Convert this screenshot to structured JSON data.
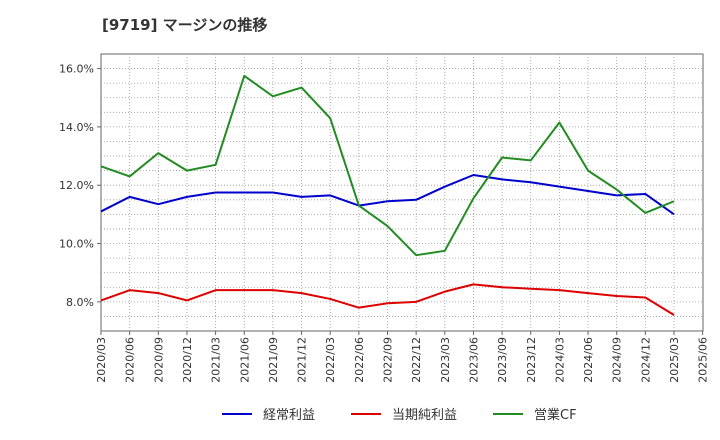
{
  "chart_data": {
    "type": "line",
    "title": "[9719]  マージンの推移",
    "x": [
      "2020/03",
      "2020/06",
      "2020/09",
      "2020/12",
      "2021/03",
      "2021/06",
      "2021/09",
      "2021/12",
      "2022/03",
      "2022/06",
      "2022/09",
      "2022/12",
      "2023/03",
      "2023/06",
      "2023/09",
      "2023/12",
      "2024/03",
      "2024/06",
      "2024/09",
      "2024/12",
      "2025/03"
    ],
    "x_ticks": [
      "2020/03",
      "2020/06",
      "2020/09",
      "2020/12",
      "2021/03",
      "2021/06",
      "2021/09",
      "2021/12",
      "2022/03",
      "2022/06",
      "2022/09",
      "2022/12",
      "2023/03",
      "2023/06",
      "2023/09",
      "2023/12",
      "2024/03",
      "2024/06",
      "2024/09",
      "2024/12",
      "2025/03",
      "2025/06"
    ],
    "y_ticks": [
      "8.0%",
      "10.0%",
      "12.0%",
      "14.0%",
      "16.0%"
    ],
    "y_tick_values": [
      8,
      10,
      12,
      14,
      16
    ],
    "ylim": [
      7.0,
      16.5
    ],
    "grid": true,
    "legend_position": "bottom",
    "series": [
      {
        "name": "経常利益",
        "color": "#0000cc",
        "values": [
          11.1,
          11.6,
          11.35,
          11.6,
          11.75,
          11.75,
          11.75,
          11.6,
          11.65,
          11.3,
          11.45,
          11.5,
          11.95,
          12.35,
          12.2,
          12.1,
          11.95,
          11.8,
          11.65,
          11.7,
          11.0
        ]
      },
      {
        "name": "当期純利益",
        "color": "#dd0000",
        "values": [
          8.05,
          8.4,
          8.3,
          8.05,
          8.4,
          8.4,
          8.4,
          8.3,
          8.1,
          7.8,
          7.95,
          8.0,
          8.35,
          8.6,
          8.5,
          8.45,
          8.4,
          8.3,
          8.2,
          8.15,
          7.55
        ]
      },
      {
        "name": "営業CF",
        "color": "#228b22",
        "values": [
          12.65,
          12.3,
          13.1,
          12.5,
          12.7,
          15.75,
          15.05,
          15.35,
          14.3,
          11.3,
          10.6,
          9.6,
          9.75,
          11.55,
          12.95,
          12.85,
          14.15,
          12.5,
          11.85,
          11.05,
          11.45
        ]
      }
    ]
  }
}
